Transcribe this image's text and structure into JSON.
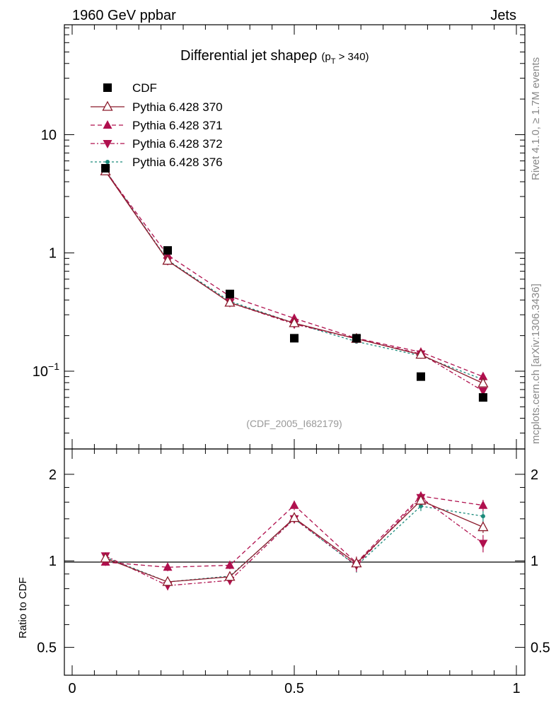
{
  "header": {
    "left_label": "1960 GeV ppbar",
    "right_label": "Jets",
    "side_label_top": "Rivet 4.1.0, ≥ 1.7M events",
    "side_label_bottom": "mcplots.cern.ch [arXiv:1306.3436]",
    "analysis_id": "(CDF_2005_I682179)"
  },
  "colors": {
    "data": "#000000",
    "pythia370": "#8b1a2b",
    "pythia371": "#b0104e",
    "pythia372": "#b0104e",
    "pythia376": "#1a8a7a",
    "reference_line": "#000000"
  },
  "chart_data": [
    {
      "type": "line",
      "title": "Differential jet shape",
      "title_symbol": "ρ",
      "title_cut": "(p",
      "title_cut_sub": "T",
      "title_cut_rest": " > 340)",
      "xlabel": "",
      "ylabel": "",
      "yscale": "log",
      "xlim": [
        0,
        1
      ],
      "ylim": [
        0.022,
        85
      ],
      "y_ticks": [
        {
          "value": 10,
          "label": "10"
        },
        {
          "value": 1,
          "label": "1"
        },
        {
          "value": 0.1,
          "label": "10",
          "sup": "−1"
        }
      ],
      "legend_position": "top-left",
      "x": [
        0.075,
        0.215,
        0.355,
        0.5,
        0.64,
        0.785,
        0.925
      ],
      "series": [
        {
          "name": "CDF",
          "key": "cdf",
          "values": [
            5.2,
            1.05,
            0.45,
            0.19,
            0.19,
            0.09,
            0.06
          ]
        },
        {
          "name": "Pythia 6.428 370",
          "key": "p370",
          "values": [
            4.9,
            0.86,
            0.38,
            0.255,
            0.188,
            0.138,
            0.079
          ]
        },
        {
          "name": "Pythia 6.428 371",
          "key": "p371",
          "values": [
            4.9,
            0.96,
            0.43,
            0.28,
            0.19,
            0.145,
            0.09
          ]
        },
        {
          "name": "Pythia 6.428 372",
          "key": "p372",
          "values": [
            5.0,
            0.86,
            0.38,
            0.25,
            0.188,
            0.14,
            0.068
          ]
        },
        {
          "name": "Pythia 6.428 376",
          "key": "p376",
          "values": [
            5.0,
            0.87,
            0.39,
            0.255,
            0.178,
            0.135,
            0.085
          ]
        }
      ]
    },
    {
      "type": "line",
      "title": "",
      "xlabel": "",
      "ylabel": "Ratio to CDF",
      "yscale": "log",
      "xlim": [
        0,
        1
      ],
      "ylim": [
        0.4,
        2.45
      ],
      "x_ticks": [
        {
          "value": 0,
          "label": "0"
        },
        {
          "value": 0.5,
          "label": "0.5"
        },
        {
          "value": 1,
          "label": "1"
        }
      ],
      "y_ticks": [
        {
          "value": 2,
          "label": "2"
        },
        {
          "value": 1,
          "label": "1"
        },
        {
          "value": 0.5,
          "label": "0.5"
        }
      ],
      "reference_value": 1,
      "x": [
        0.075,
        0.215,
        0.355,
        0.5,
        0.64,
        0.785,
        0.925
      ],
      "series": [
        {
          "name": "Pythia 6.428 370",
          "key": "p370",
          "values": [
            1.02,
            0.845,
            0.88,
            1.41,
            0.98,
            1.62,
            1.31
          ],
          "err": [
            0.03,
            0.03,
            0.03,
            0.05,
            0.05,
            0.06,
            0.06
          ]
        },
        {
          "name": "Pythia 6.428 371",
          "key": "p371",
          "values": [
            0.99,
            0.95,
            0.965,
            1.56,
            0.985,
            1.68,
            1.56
          ],
          "err": [
            0.03,
            0.03,
            0.03,
            0.06,
            0.05,
            0.06,
            0.07
          ]
        },
        {
          "name": "Pythia 6.428 372",
          "key": "p372",
          "values": [
            1.04,
            0.82,
            0.855,
            1.4,
            0.965,
            1.66,
            1.15
          ],
          "err": [
            0.03,
            0.03,
            0.03,
            0.05,
            0.05,
            0.06,
            0.08
          ]
        },
        {
          "name": "Pythia 6.428 376",
          "key": "p376",
          "values": [
            1.03,
            0.845,
            0.885,
            1.4,
            0.96,
            1.55,
            1.43
          ],
          "err": [
            0.03,
            0.03,
            0.03,
            0.05,
            0.05,
            0.06,
            0.07
          ]
        }
      ]
    }
  ]
}
